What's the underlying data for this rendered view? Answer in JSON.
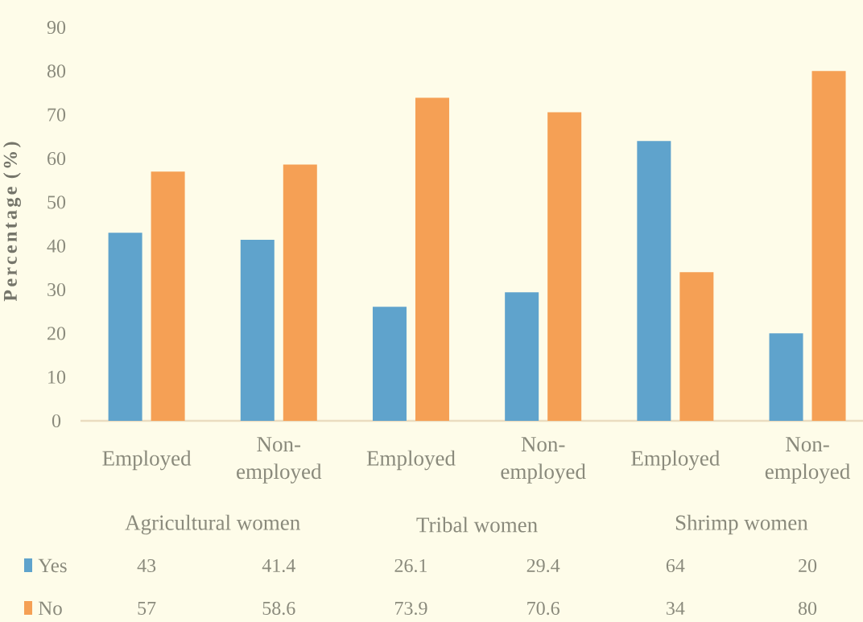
{
  "chart_data": {
    "type": "bar",
    "ylabel": "Percentage (%)",
    "categories": [
      "Employed",
      "Non-employed",
      "Employed",
      "Non-employed",
      "Employed",
      "Non-employed"
    ],
    "series": [
      {
        "name": "Yes",
        "color": "#5fa3cc",
        "values": [
          43,
          41.4,
          26.1,
          29.4,
          64,
          20
        ]
      },
      {
        "name": "No",
        "color": "#f5a055",
        "values": [
          57,
          58.6,
          73.9,
          70.6,
          34,
          80
        ]
      }
    ],
    "ylim": [
      0,
      90
    ],
    "yticks": [
      0,
      10,
      20,
      30,
      40,
      50,
      60,
      70,
      80,
      90
    ],
    "data_labels": true,
    "legend": "bottom",
    "annotations": [
      "Agricultural women",
      "Tribal women",
      "Shrimp women"
    ]
  }
}
